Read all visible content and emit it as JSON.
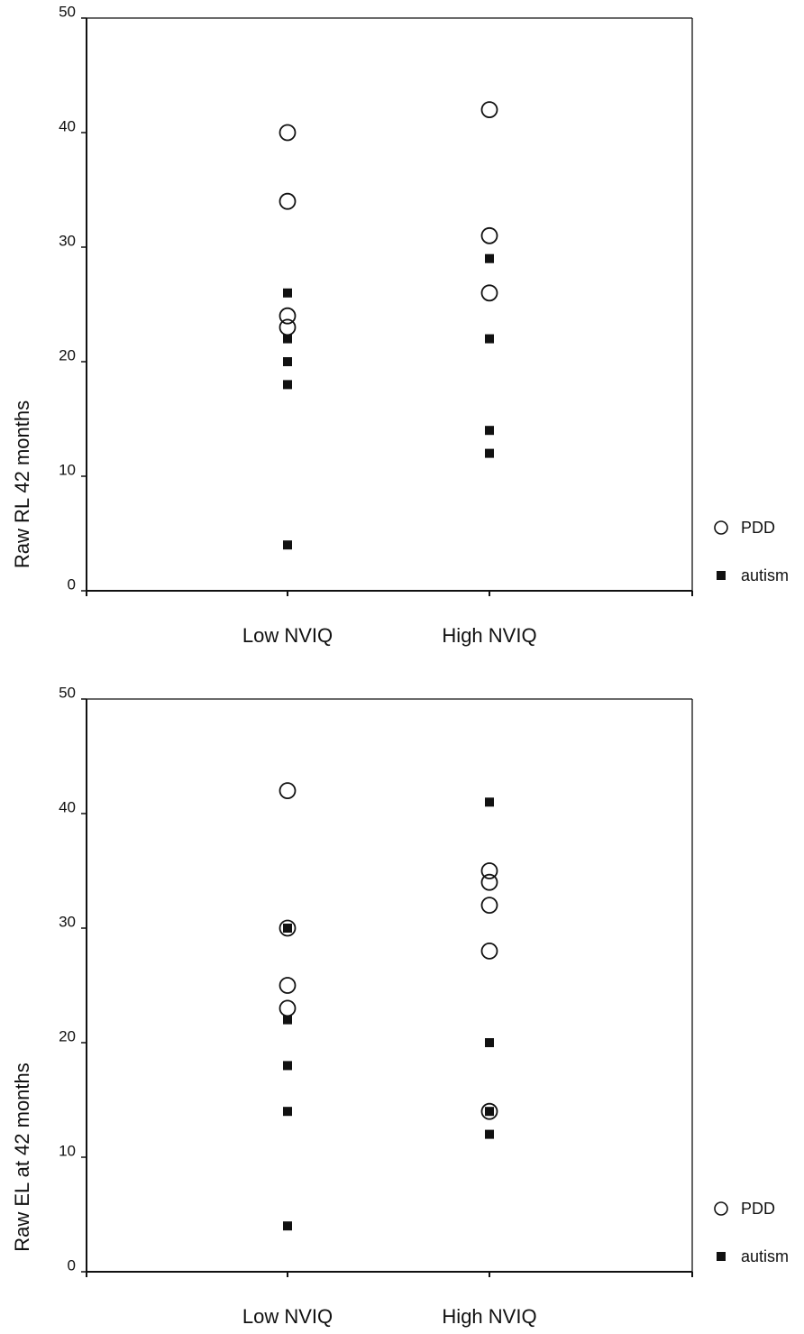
{
  "chart_data": [
    {
      "type": "scatter",
      "ylabel": "Raw RL 42 months",
      "ylim": [
        0,
        50
      ],
      "yticks": [
        0,
        10,
        20,
        30,
        40,
        50
      ],
      "categories": [
        "Low NVIQ",
        "High NVIQ"
      ],
      "legend_placement": "right-bottom",
      "grid": false,
      "series": [
        {
          "name": "PDD",
          "marker": "open-circle",
          "points": [
            {
              "category": "Low NVIQ",
              "y": 40
            },
            {
              "category": "Low NVIQ",
              "y": 34
            },
            {
              "category": "Low NVIQ",
              "y": 24
            },
            {
              "category": "Low NVIQ",
              "y": 23
            },
            {
              "category": "High NVIQ",
              "y": 42
            },
            {
              "category": "High NVIQ",
              "y": 31
            },
            {
              "category": "High NVIQ",
              "y": 26
            }
          ]
        },
        {
          "name": "autism",
          "marker": "filled-square",
          "points": [
            {
              "category": "Low NVIQ",
              "y": 26
            },
            {
              "category": "Low NVIQ",
              "y": 22
            },
            {
              "category": "Low NVIQ",
              "y": 20
            },
            {
              "category": "Low NVIQ",
              "y": 18
            },
            {
              "category": "Low NVIQ",
              "y": 4
            },
            {
              "category": "High NVIQ",
              "y": 29
            },
            {
              "category": "High NVIQ",
              "y": 22
            },
            {
              "category": "High NVIQ",
              "y": 14
            },
            {
              "category": "High NVIQ",
              "y": 12
            }
          ]
        }
      ]
    },
    {
      "type": "scatter",
      "ylabel": "Raw EL at 42 months",
      "ylim": [
        0,
        50
      ],
      "yticks": [
        0,
        10,
        20,
        30,
        40,
        50
      ],
      "categories": [
        "Low NVIQ",
        "High NVIQ"
      ],
      "legend_placement": "right-bottom",
      "grid": false,
      "series": [
        {
          "name": "PDD",
          "marker": "open-circle",
          "points": [
            {
              "category": "Low NVIQ",
              "y": 42
            },
            {
              "category": "Low NVIQ",
              "y": 30
            },
            {
              "category": "Low NVIQ",
              "y": 25
            },
            {
              "category": "Low NVIQ",
              "y": 23
            },
            {
              "category": "High NVIQ",
              "y": 35
            },
            {
              "category": "High NVIQ",
              "y": 34
            },
            {
              "category": "High NVIQ",
              "y": 32
            },
            {
              "category": "High NVIQ",
              "y": 28
            },
            {
              "category": "High NVIQ",
              "y": 14
            }
          ]
        },
        {
          "name": "autism",
          "marker": "filled-square",
          "points": [
            {
              "category": "Low NVIQ",
              "y": 30
            },
            {
              "category": "Low NVIQ",
              "y": 22
            },
            {
              "category": "Low NVIQ",
              "y": 18
            },
            {
              "category": "Low NVIQ",
              "y": 14
            },
            {
              "category": "Low NVIQ",
              "y": 4
            },
            {
              "category": "High NVIQ",
              "y": 41
            },
            {
              "category": "High NVIQ",
              "y": 20
            },
            {
              "category": "High NVIQ",
              "y": 14
            },
            {
              "category": "High NVIQ",
              "y": 12
            }
          ]
        }
      ]
    }
  ]
}
